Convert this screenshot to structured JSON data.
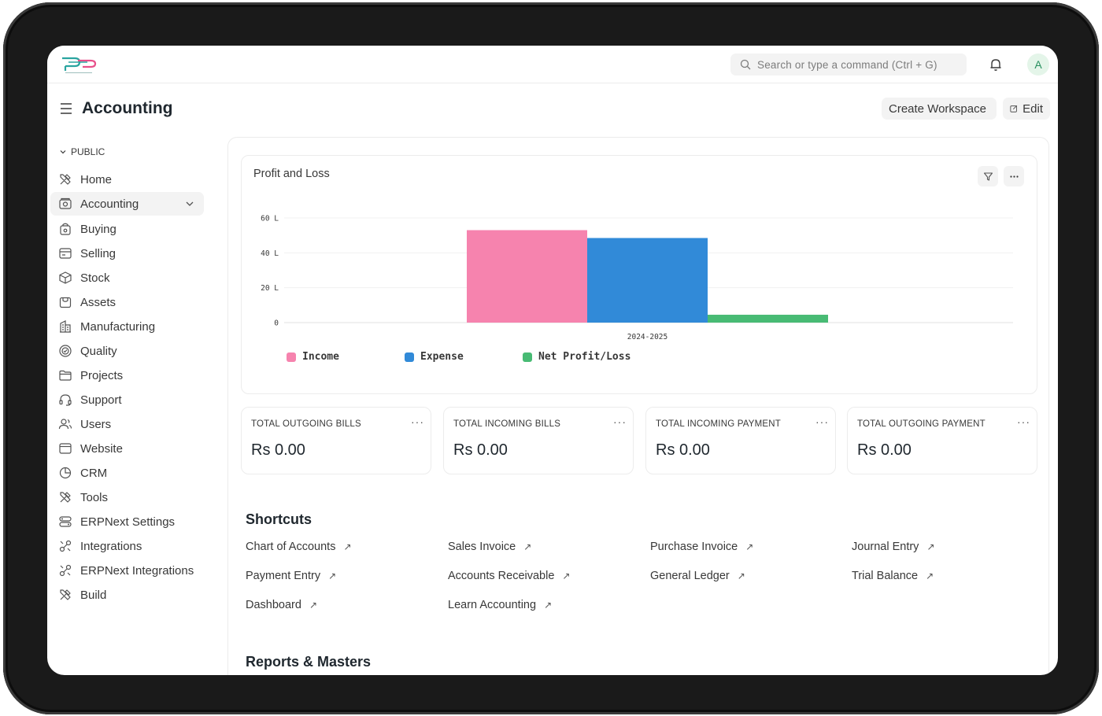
{
  "navbar": {
    "search_placeholder": "Search or type a command (Ctrl + G)",
    "avatar_initial": "A"
  },
  "page": {
    "title": "Accounting",
    "create_workspace": "Create Workspace",
    "edit": "Edit"
  },
  "sidebar": {
    "section": "PUBLIC",
    "items": [
      {
        "label": "Home",
        "icon": "tools-icon"
      },
      {
        "label": "Accounting",
        "icon": "accounting-icon"
      },
      {
        "label": "Buying",
        "icon": "buying-icon"
      },
      {
        "label": "Selling",
        "icon": "selling-icon"
      },
      {
        "label": "Stock",
        "icon": "stock-icon"
      },
      {
        "label": "Assets",
        "icon": "assets-icon"
      },
      {
        "label": "Manufacturing",
        "icon": "building-icon"
      },
      {
        "label": "Quality",
        "icon": "quality-icon"
      },
      {
        "label": "Projects",
        "icon": "folder-icon"
      },
      {
        "label": "Support",
        "icon": "headset-icon"
      },
      {
        "label": "Users",
        "icon": "users-icon"
      },
      {
        "label": "Website",
        "icon": "website-icon"
      },
      {
        "label": "CRM",
        "icon": "crm-icon"
      },
      {
        "label": "Tools",
        "icon": "tools-icon"
      },
      {
        "label": "ERPNext Settings",
        "icon": "settings-icon"
      },
      {
        "label": "Integrations",
        "icon": "integration-icon"
      },
      {
        "label": "ERPNext Integrations",
        "icon": "integration-icon"
      },
      {
        "label": "Build",
        "icon": "tools-icon"
      }
    ]
  },
  "chart": {
    "title": "Profit and Loss"
  },
  "chart_data": {
    "type": "bar",
    "categories": [
      "2024-2025"
    ],
    "series": [
      {
        "name": "Income",
        "values": [
          53
        ],
        "color": "#f683ae"
      },
      {
        "name": "Expense",
        "values": [
          48.5
        ],
        "color": "#318ad8"
      },
      {
        "name": "Net Profit/Loss",
        "values": [
          4.5
        ],
        "color": "#48bb74"
      }
    ],
    "y_ticks": [
      "0",
      "20 L",
      "40 L",
      "60 L"
    ],
    "ylim": [
      0,
      60
    ],
    "grid": true,
    "legend_position": "bottom"
  },
  "stats": [
    {
      "label": "TOTAL OUTGOING BILLS",
      "value": "Rs 0.00"
    },
    {
      "label": "TOTAL INCOMING BILLS",
      "value": "Rs 0.00"
    },
    {
      "label": "TOTAL INCOMING PAYMENT",
      "value": "Rs 0.00"
    },
    {
      "label": "TOTAL OUTGOING PAYMENT",
      "value": "Rs 0.00"
    }
  ],
  "shortcuts": {
    "title": "Shortcuts",
    "items": [
      "Chart of Accounts",
      "Sales Invoice",
      "Purchase Invoice",
      "Journal Entry",
      "Payment Entry",
      "Accounts Receivable",
      "General Ledger",
      "Trial Balance",
      "Dashboard",
      "Learn Accounting"
    ]
  },
  "reports": {
    "title": "Reports & Masters"
  }
}
